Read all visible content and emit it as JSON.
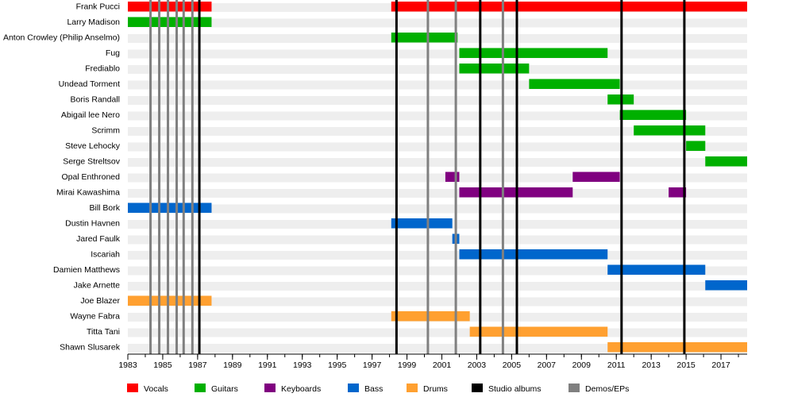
{
  "chart_data": {
    "type": "timeline",
    "xlim": [
      1983,
      2018.5
    ],
    "x_ticks": [
      "1983",
      "1985",
      "1987",
      "1989",
      "1991",
      "1993",
      "1995",
      "1997",
      "1999",
      "2001",
      "2003",
      "2005",
      "2007",
      "2009",
      "2011",
      "2013",
      "2015",
      "2017"
    ],
    "grid": true,
    "legend_position": "bottom",
    "members": [
      "Frank Pucci",
      "Larry Madison",
      "Anton Crowley (Philip Anselmo)",
      "Fug",
      "Frediablo",
      "Undead Torment",
      "Boris Randall",
      "Abigail lee Nero",
      "Scrimm",
      "Steve Lehocky",
      "Serge Streltsov",
      "Opal Enthroned",
      "Mirai Kawashima",
      "Bill Bork",
      "Dustin Havnen",
      "Jared Faulk",
      "Iscariah",
      "Damien Matthews",
      "Jake Arnette",
      "Joe Blazer",
      "Wayne Fabra",
      "Titta Tani",
      "Shawn Slusarek"
    ],
    "legend": [
      {
        "label": "Vocals",
        "color": "#ff0000"
      },
      {
        "label": "Guitars",
        "color": "#00b000"
      },
      {
        "label": "Keyboards",
        "color": "#800080"
      },
      {
        "label": "Bass",
        "color": "#0066cc"
      },
      {
        "label": "Drums",
        "color": "#ffa030"
      },
      {
        "label": "Studio albums",
        "color": "#000000"
      },
      {
        "label": "Demos/EPs",
        "color": "#808080"
      }
    ],
    "role_colors": {
      "Vocals": "#ff0000",
      "Guitars": "#00b000",
      "Keyboards": "#800080",
      "Bass": "#0066cc",
      "Drums": "#ffa030"
    },
    "bars": [
      {
        "member": "Frank Pucci",
        "role": "Vocals",
        "start": 1983.0,
        "end": 1987.8
      },
      {
        "member": "Frank Pucci",
        "role": "Vocals",
        "start": 1998.1,
        "end": 2018.5
      },
      {
        "member": "Larry Madison",
        "role": "Guitars",
        "start": 1983.0,
        "end": 1987.8
      },
      {
        "member": "Anton Crowley (Philip Anselmo)",
        "role": "Guitars",
        "start": 1998.1,
        "end": 2001.9
      },
      {
        "member": "Fug",
        "role": "Guitars",
        "start": 2002.0,
        "end": 2010.5
      },
      {
        "member": "Frediablo",
        "role": "Guitars",
        "start": 2002.0,
        "end": 2006.0
      },
      {
        "member": "Undead Torment",
        "role": "Guitars",
        "start": 2006.0,
        "end": 2011.2
      },
      {
        "member": "Boris Randall",
        "role": "Guitars",
        "start": 2010.5,
        "end": 2012.0
      },
      {
        "member": "Abigail lee Nero",
        "role": "Guitars",
        "start": 2011.2,
        "end": 2015.0
      },
      {
        "member": "Scrimm",
        "role": "Guitars",
        "start": 2012.0,
        "end": 2016.1
      },
      {
        "member": "Steve Lehocky",
        "role": "Guitars",
        "start": 2015.0,
        "end": 2016.1
      },
      {
        "member": "Serge Streltsov",
        "role": "Guitars",
        "start": 2016.1,
        "end": 2018.5
      },
      {
        "member": "Opal Enthroned",
        "role": "Keyboards",
        "start": 2001.2,
        "end": 2002.0
      },
      {
        "member": "Opal Enthroned",
        "role": "Keyboards",
        "start": 2008.5,
        "end": 2011.2
      },
      {
        "member": "Mirai Kawashima",
        "role": "Keyboards",
        "start": 2002.0,
        "end": 2008.5
      },
      {
        "member": "Mirai Kawashima",
        "role": "Keyboards",
        "start": 2014.0,
        "end": 2015.0
      },
      {
        "member": "Bill Bork",
        "role": "Bass",
        "start": 1983.0,
        "end": 1987.8
      },
      {
        "member": "Dustin Havnen",
        "role": "Bass",
        "start": 1998.1,
        "end": 2001.6
      },
      {
        "member": "Jared Faulk",
        "role": "Bass",
        "start": 2001.6,
        "end": 2002.0
      },
      {
        "member": "Iscariah",
        "role": "Bass",
        "start": 2002.0,
        "end": 2010.5
      },
      {
        "member": "Damien Matthews",
        "role": "Bass",
        "start": 2010.5,
        "end": 2016.1
      },
      {
        "member": "Jake Arnette",
        "role": "Bass",
        "start": 2016.1,
        "end": 2018.5
      },
      {
        "member": "Joe Blazer",
        "role": "Drums",
        "start": 1983.0,
        "end": 1987.8
      },
      {
        "member": "Wayne Fabra",
        "role": "Drums",
        "start": 1998.1,
        "end": 2002.6
      },
      {
        "member": "Titta Tani",
        "role": "Drums",
        "start": 2002.6,
        "end": 2010.5
      },
      {
        "member": "Shawn Slusarek",
        "role": "Drums",
        "start": 2010.5,
        "end": 2018.5
      }
    ],
    "studio_albums": [
      1987.1,
      1998.4,
      2003.2,
      2005.3,
      2011.3,
      2014.9
    ],
    "demos_eps": [
      1984.3,
      1984.8,
      1985.3,
      1985.8,
      1986.2,
      1986.7,
      2000.2,
      2001.8,
      2004.5
    ]
  }
}
